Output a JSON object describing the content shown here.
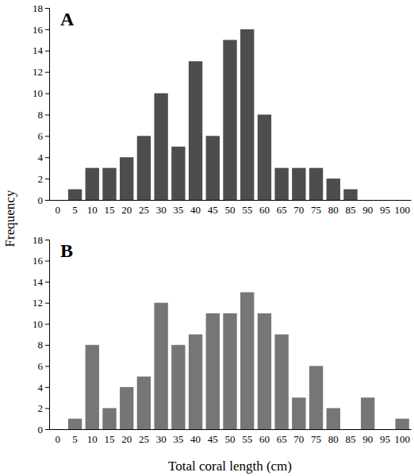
{
  "chart_data": [
    {
      "type": "bar",
      "title": "A",
      "ylabel": "Frequency",
      "categories": [
        "0",
        "5",
        "10",
        "15",
        "20",
        "25",
        "30",
        "35",
        "40",
        "45",
        "50",
        "55",
        "60",
        "65",
        "70",
        "75",
        "80",
        "85",
        "90",
        "95",
        "100"
      ],
      "values": [
        0,
        1,
        3,
        3,
        4,
        6,
        10,
        5,
        13,
        6,
        15,
        16,
        8,
        3,
        3,
        3,
        2,
        1,
        0,
        0,
        0
      ],
      "color": "#4d4d4d",
      "ylim": [
        0,
        18
      ],
      "yticks": [
        0,
        2,
        4,
        6,
        8,
        10,
        12,
        14,
        16,
        18
      ],
      "grid": false
    },
    {
      "type": "bar",
      "title": "B",
      "xlabel": "Total coral length (cm)",
      "categories": [
        "0",
        "5",
        "10",
        "15",
        "20",
        "25",
        "30",
        "35",
        "40",
        "45",
        "50",
        "55",
        "60",
        "65",
        "70",
        "75",
        "80",
        "85",
        "90",
        "95",
        "100"
      ],
      "values": [
        0,
        1,
        8,
        2,
        4,
        5,
        12,
        8,
        9,
        11,
        11,
        13,
        11,
        9,
        3,
        6,
        2,
        0,
        3,
        0,
        1
      ],
      "color": "#767676",
      "ylim": [
        0,
        18
      ],
      "yticks": [
        0,
        2,
        4,
        6,
        8,
        10,
        12,
        14,
        16,
        18
      ],
      "grid": false
    }
  ]
}
